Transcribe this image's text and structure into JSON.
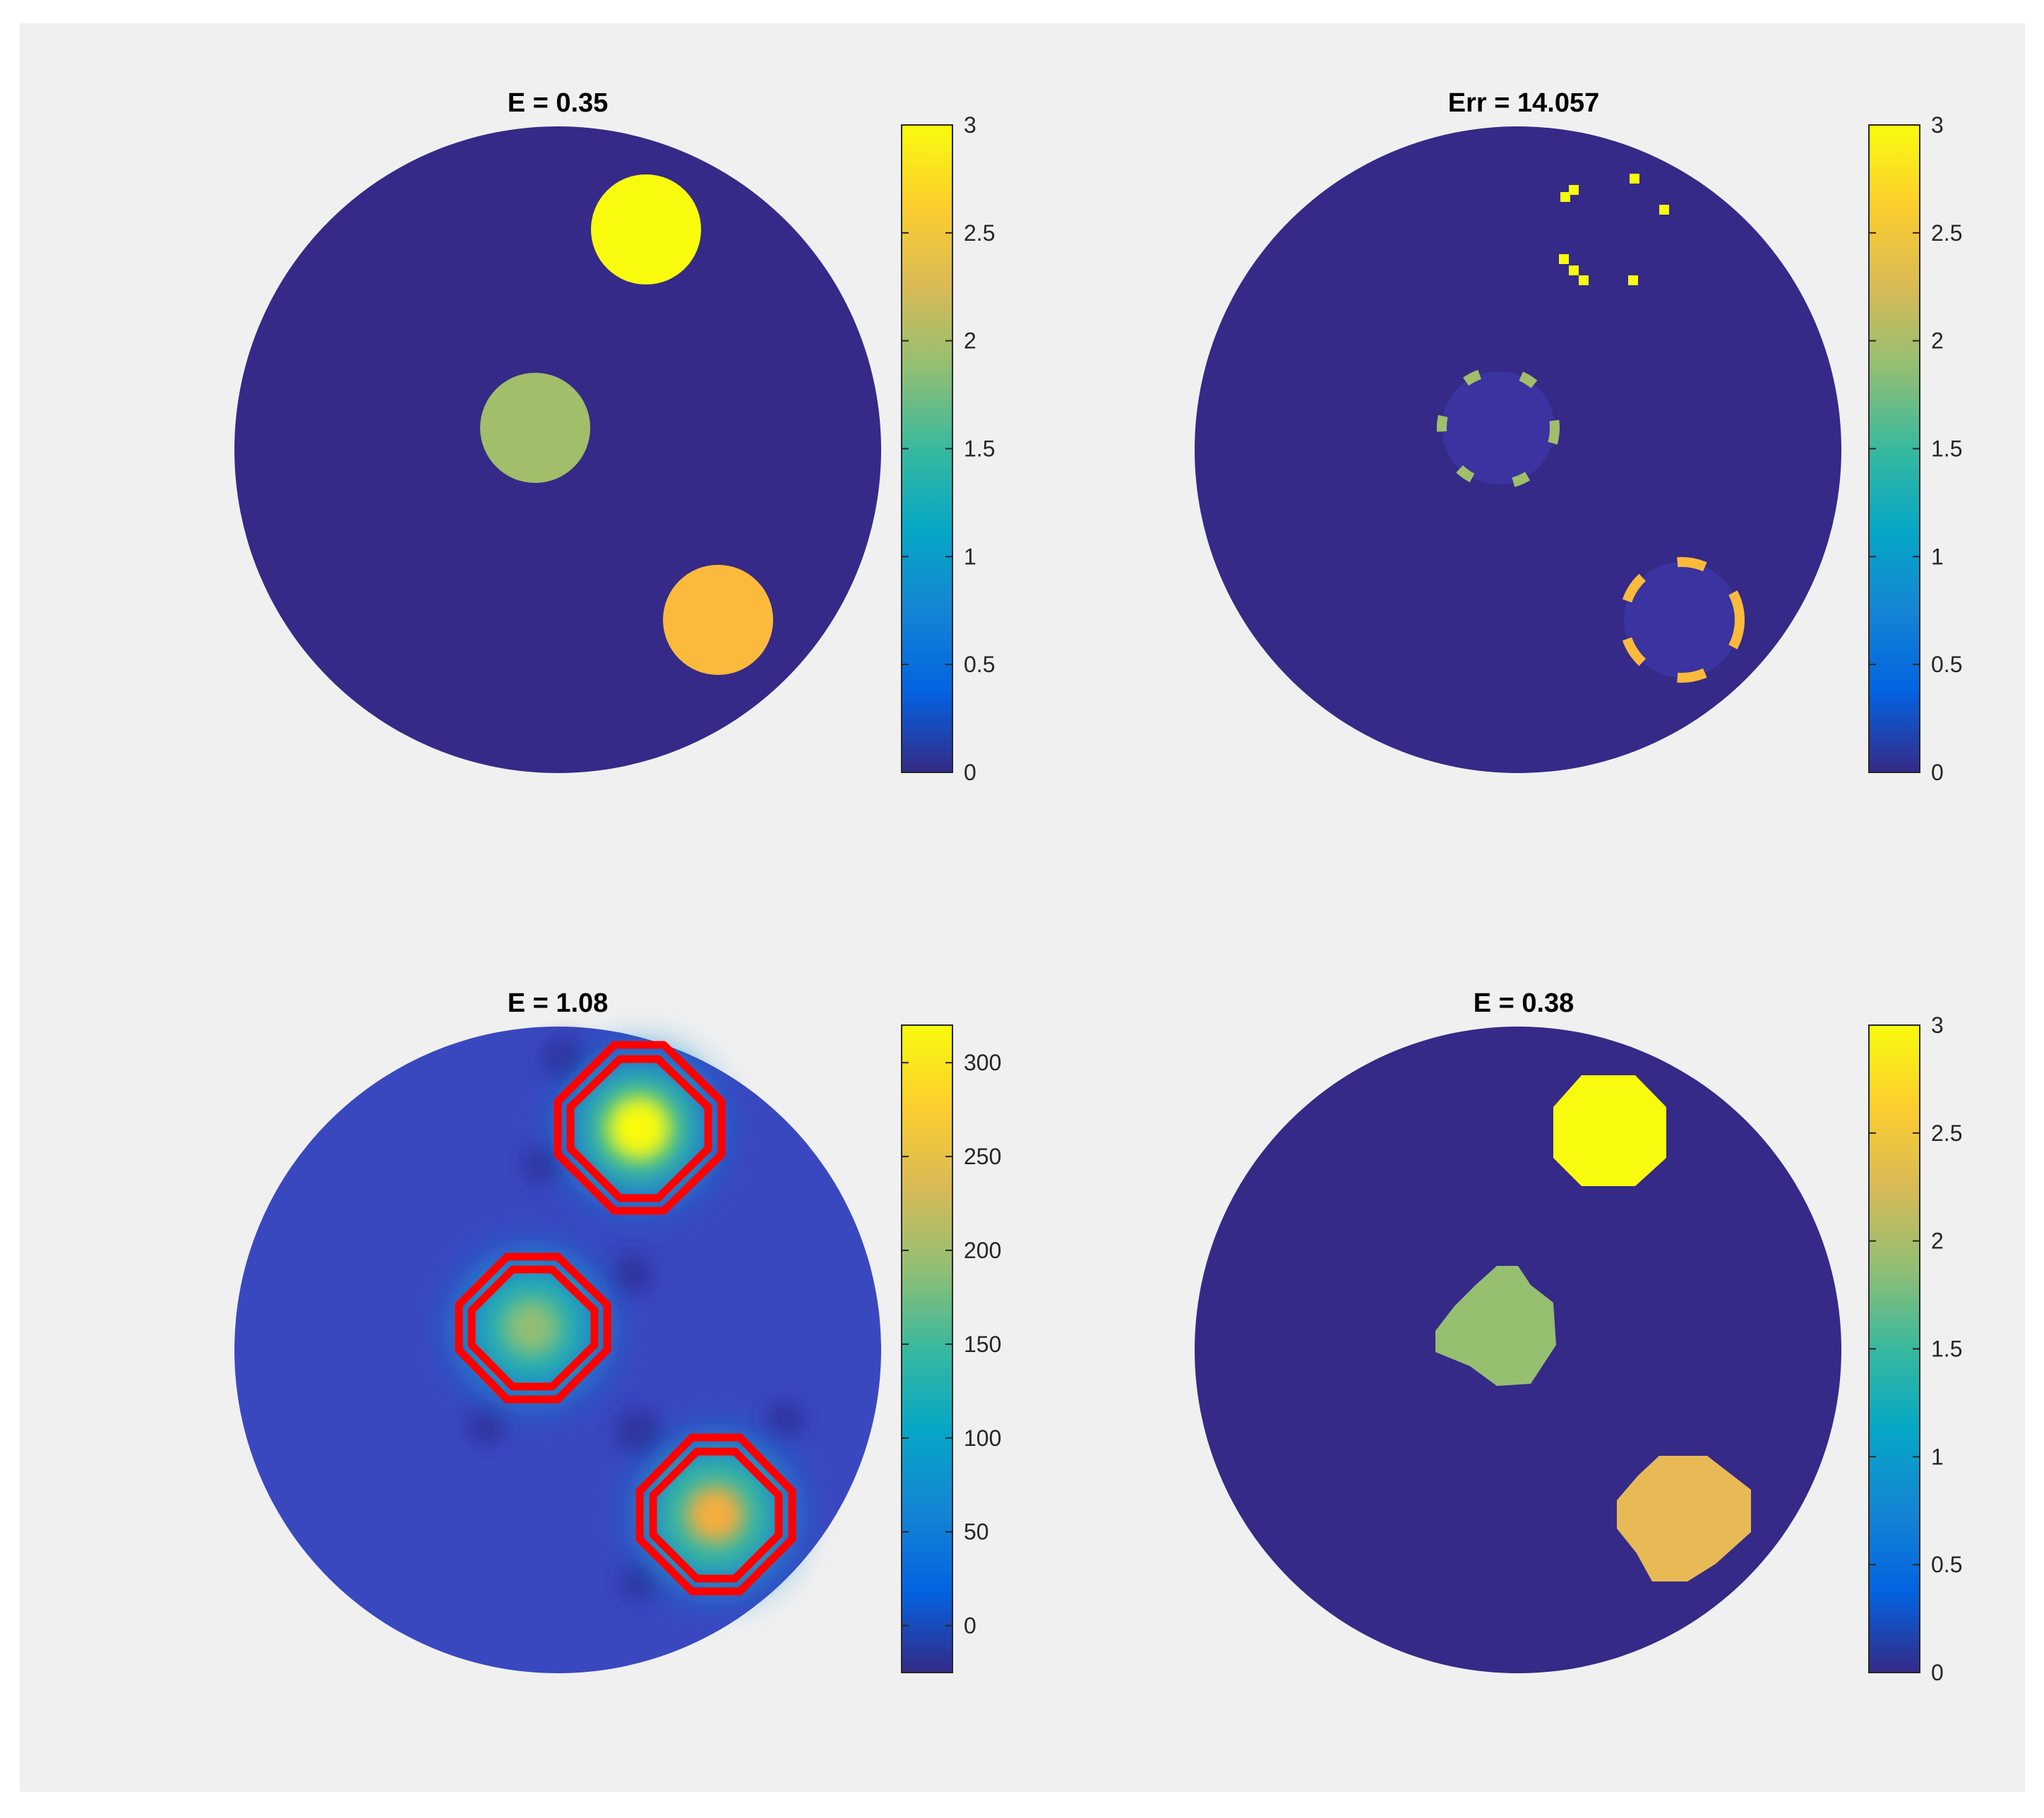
{
  "colors": {
    "figure_background": "#f0f0f0",
    "disk_background": "#352a87",
    "overlay_contour": "#ff0000",
    "colormap": "parula"
  },
  "chart_data": [
    {
      "type": "heatmap",
      "panel": "top-left",
      "title": "E = 0.35",
      "colorbar": {
        "range": [
          0,
          3
        ],
        "ticks": [
          0,
          0.5,
          1,
          1.5,
          2,
          2.5,
          3
        ],
        "tick_labels": [
          "0",
          "0.5",
          "1",
          "1.5",
          "2",
          "2.5",
          "3"
        ]
      },
      "domain": "disk",
      "background_value": 0,
      "inclusions": [
        {
          "value": 3.0
        },
        {
          "value": 1.9
        },
        {
          "value": 2.6
        }
      ]
    },
    {
      "type": "heatmap",
      "panel": "top-right",
      "title": "Err = 14.057",
      "colorbar": {
        "range": [
          0,
          3
        ],
        "ticks": [
          0,
          0.5,
          1,
          1.5,
          2,
          2.5,
          3
        ],
        "tick_labels": [
          "0",
          "0.5",
          "1",
          "1.5",
          "2",
          "2.5",
          "3"
        ]
      },
      "domain": "disk",
      "background_value": 0,
      "inclusions": [
        {
          "value": 3.0
        },
        {
          "value": 1.9
        },
        {
          "value": 2.6
        }
      ]
    },
    {
      "type": "heatmap",
      "panel": "bottom-left",
      "title": "E = 1.08",
      "colorbar": {
        "range": [
          -25,
          320
        ],
        "ticks": [
          0,
          50,
          100,
          150,
          200,
          250,
          300
        ],
        "tick_labels": [
          "0",
          "50",
          "100",
          "150",
          "200",
          "250",
          "300"
        ]
      },
      "domain": "disk",
      "background_value": 20,
      "inclusions": [
        {
          "peak_value": 320
        },
        {
          "peak_value": 175
        },
        {
          "peak_value": 270
        }
      ]
    },
    {
      "type": "heatmap",
      "panel": "bottom-right",
      "title": "E = 0.38",
      "colorbar": {
        "range": [
          0,
          3
        ],
        "ticks": [
          0,
          0.5,
          1,
          1.5,
          2,
          2.5,
          3
        ],
        "tick_labels": [
          "0",
          "0.5",
          "1",
          "1.5",
          "2",
          "2.5",
          "3"
        ]
      },
      "domain": "disk",
      "background_value": 0,
      "inclusions": [
        {
          "value": 3.0
        },
        {
          "value": 1.85
        },
        {
          "value": 2.5
        }
      ]
    }
  ]
}
